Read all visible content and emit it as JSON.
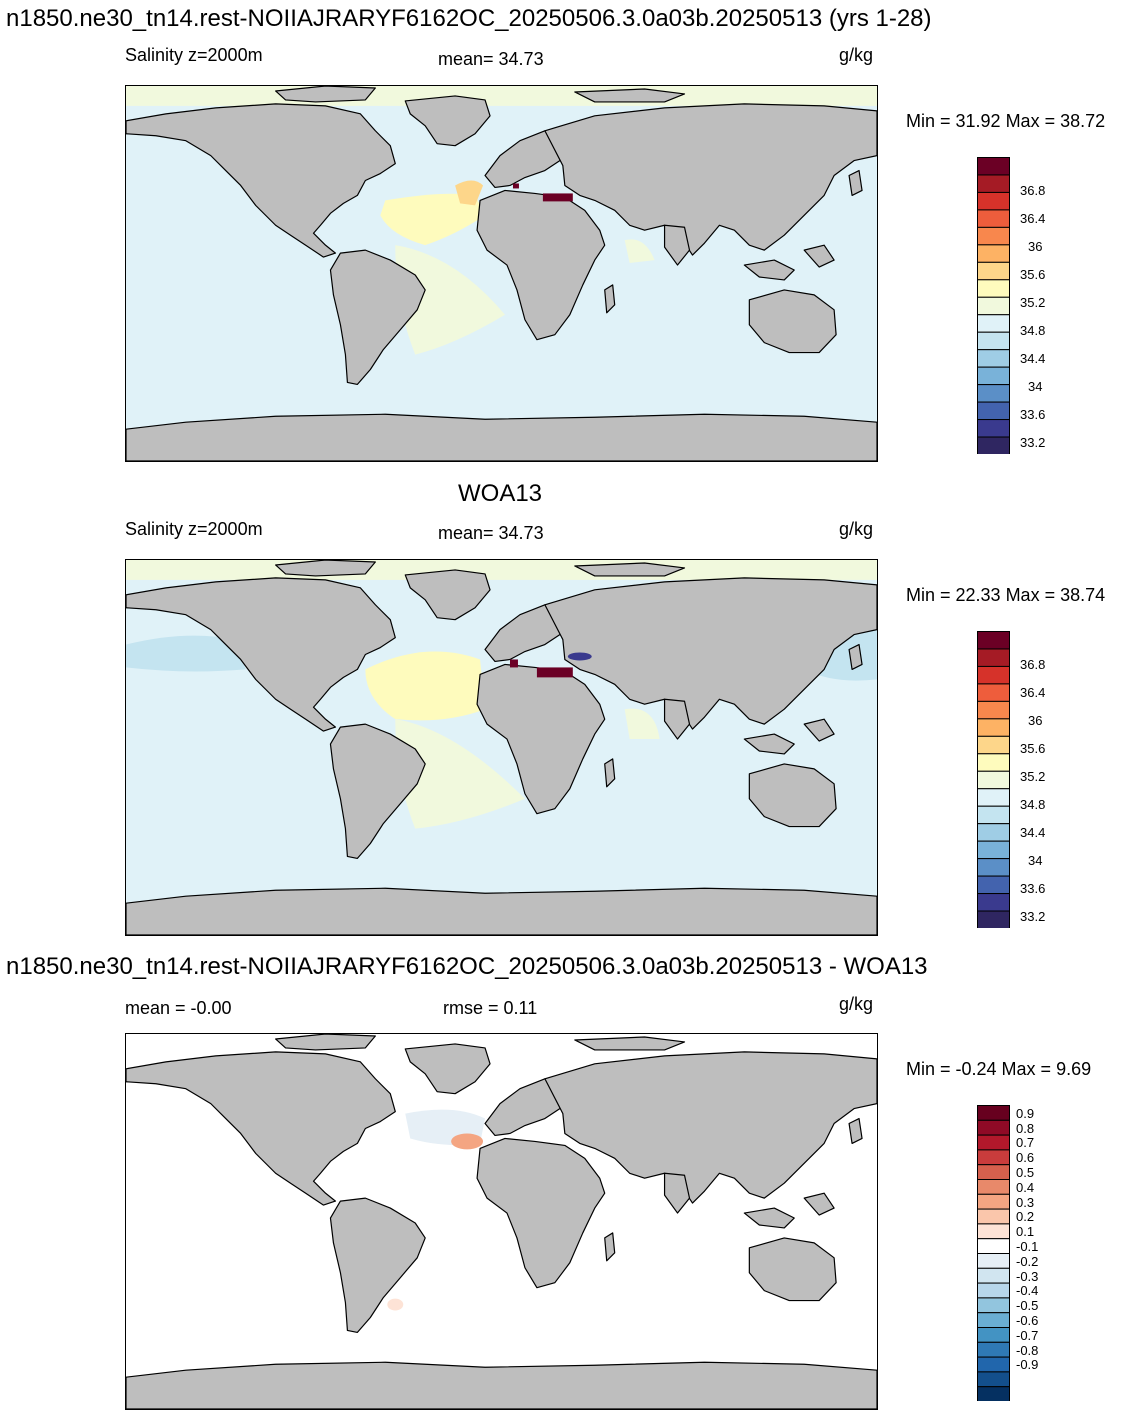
{
  "panel1": {
    "case_title": "n1850.ne30_tn14.rest-NOIIAJRARYF6162OC_20250506.3.0a03b.20250513 (yrs 1-28)",
    "field_label": "Salinity z=2000m",
    "mean_text": "mean=  34.73",
    "units": "g/kg",
    "minmax": "Min =  31.92 Max =  38.72"
  },
  "panel2": {
    "title": "WOA13",
    "field_label": "Salinity z=2000m",
    "mean_text": "mean=  34.73",
    "units": "g/kg",
    "minmax": "Min =  22.33 Max =  38.74"
  },
  "panel3": {
    "title": "n1850.ne30_tn14.rest-NOIIAJRARYF6162OC_20250506.3.0a03b.20250513 - WOA13",
    "mean_text": "mean =  -0.00",
    "rmse_text": "rmse =   0.11",
    "units": "g/kg",
    "minmax": "Min =  -0.24 Max =   9.69"
  },
  "salinity_colorbar": {
    "colors": [
      "#6b0025",
      "#a51b25",
      "#d6322a",
      "#ee5d3c",
      "#f8874d",
      "#fdb264",
      "#fdd68a",
      "#fefbbd",
      "#f1f9dd",
      "#e0f2f8",
      "#c4e4f0",
      "#9fcde5",
      "#79b2d9",
      "#5b8fc7",
      "#4363ae",
      "#3a3a8e",
      "#2f2661"
    ],
    "tick_labels": [
      "36.8",
      "36.4",
      "36",
      "35.6",
      "35.2",
      "34.8",
      "34.4",
      "34",
      "33.6",
      "33.2"
    ]
  },
  "diff_colorbar": {
    "colors": [
      "#67001f",
      "#8f0a26",
      "#b2182b",
      "#c93c3c",
      "#d6604d",
      "#e8896a",
      "#f4a582",
      "#fac6ab",
      "#fde3d6",
      "#ffffff",
      "#e6eff6",
      "#d1e5f0",
      "#b7d6ea",
      "#92c5de",
      "#6aaed3",
      "#4393c3",
      "#2f79b5",
      "#2166ac",
      "#134f8c",
      "#053061"
    ],
    "tick_labels": [
      "0.9",
      "0.8",
      "0.7",
      "0.6",
      "0.5",
      "0.4",
      "0.3",
      "0.2",
      "0.1",
      "-0.1",
      "-0.2",
      "-0.3",
      "-0.4",
      "-0.5",
      "-0.6",
      "-0.7",
      "-0.8",
      "-0.9"
    ]
  },
  "map_colors": {
    "land": "#bebebe",
    "ocean_base": "#e0f2f8",
    "coast": "#000000"
  }
}
